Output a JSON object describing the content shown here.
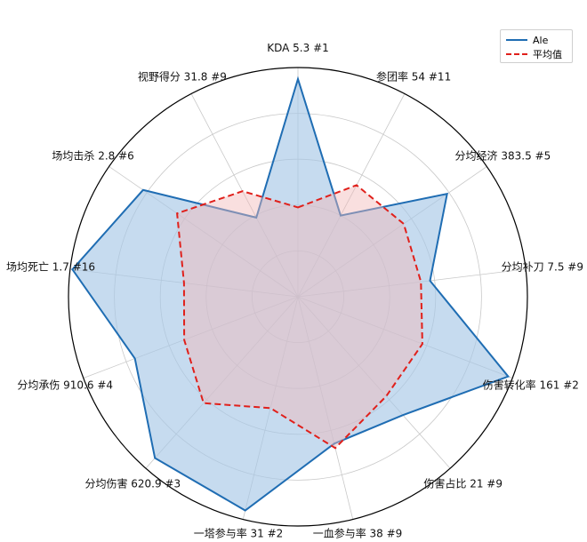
{
  "chart_data": {
    "type": "radar",
    "axes": [
      {
        "label": "KDA 5.3 #1",
        "ale": 0.95,
        "avg": 0.39
      },
      {
        "label": "参团率 54 #11",
        "ale": 0.4,
        "avg": 0.55
      },
      {
        "label": "分均经济 383.5 #5",
        "ale": 0.79,
        "avg": 0.56
      },
      {
        "label": "分均补刀 7.5 #9",
        "ale": 0.58,
        "avg": 0.54
      },
      {
        "label": "伤害转化率 161 #2",
        "ale": 0.98,
        "avg": 0.58
      },
      {
        "label": "伤害占比 21 #9",
        "ale": 0.69,
        "avg": 0.58
      },
      {
        "label": "一血参与率 38 #9",
        "ale": 0.66,
        "avg": 0.68
      },
      {
        "label": "一塔参与率 31 #2",
        "ale": 0.96,
        "avg": 0.5
      },
      {
        "label": "分均伤害 620.9 #3",
        "ale": 0.94,
        "avg": 0.62
      },
      {
        "label": "分均承伤 910.6 #4",
        "ale": 0.76,
        "avg": 0.53
      },
      {
        "label": "场均死亡 1.7 #16",
        "ale": 0.99,
        "avg": 0.5
      },
      {
        "label": "场均击杀 2.8 #6",
        "ale": 0.82,
        "avg": 0.64
      },
      {
        "label": "视野得分 31.8 #9",
        "ale": 0.39,
        "avg": 0.52
      }
    ],
    "series": [
      {
        "name": "Ale",
        "key": "ale",
        "color": "#1f6db3",
        "fill": "#a8c8e6",
        "style": "solid"
      },
      {
        "name": "平均值",
        "key": "avg",
        "color": "#e0201b",
        "fill": "#f2b8b8",
        "style": "dashed"
      }
    ],
    "rlim": [
      0,
      1
    ],
    "grid": true,
    "legend_position": "top-right"
  }
}
